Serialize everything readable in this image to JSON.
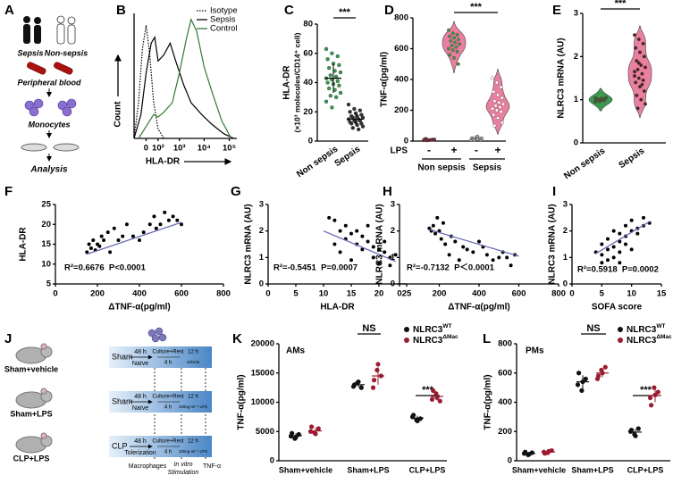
{
  "panel_a": {
    "panel": "A",
    "sepsis": "Sepsis",
    "non_sepsis": "Non-sepsis",
    "blood": "Peripheral blood",
    "monocytes": "Monocytes",
    "analysis": "Analysis"
  },
  "panel_j": {
    "panel": "J",
    "groups": [
      "Sham+vehicle",
      "Sham+LPS",
      "CLP+LPS"
    ],
    "rows": [
      {
        "surgery": "Sham",
        "time": "48 h",
        "state": "Naïve",
        "culture": "Culture+Rest",
        "culture_time": "4 h",
        "stim_time": "12 h",
        "stim": "Vehicle"
      },
      {
        "surgery": "Sham",
        "time": "48 h",
        "state": "Naïve",
        "culture": "Culture+Rest",
        "culture_time": "4 h",
        "stim_time": "12 h",
        "stim": "100ng ml⁻¹ LPS"
      },
      {
        "surgery": "CLP",
        "time": "48 h",
        "state": "Tolerization",
        "culture": "Culture+Rest",
        "culture_time": "4 h",
        "stim_time": "12 h",
        "stim": "100ng ml⁻¹ LPS"
      }
    ],
    "macrophages": "Macrophages",
    "in_vitro": "In vitro",
    "stimulation": "Stimulation",
    "readout": "TNF-α"
  },
  "chart_data": [
    {
      "type": "density",
      "panel": "B",
      "xlabel": "HLA-DR",
      "ylabel": "Count",
      "xscale": "symlog",
      "xlim": [
        -100,
        200000
      ],
      "ylim": [
        0,
        105
      ],
      "xticks": [
        0,
        {
          "value": 100,
          "label": "10²"
        },
        {
          "value": 1000,
          "label": "10³"
        },
        {
          "value": 10000,
          "label": "10⁴"
        },
        {
          "value": 100000,
          "label": "10⁵"
        }
      ],
      "series": [
        {
          "name": "Isotype",
          "color": "#000000",
          "dash": "dotted",
          "x": [
            -100,
            -50,
            -20,
            0,
            20,
            50,
            100,
            200
          ],
          "values": [
            0,
            30,
            75,
            95,
            70,
            30,
            8,
            0
          ]
        },
        {
          "name": "Sepsis",
          "color": "#000000",
          "dash": "solid",
          "x": [
            -100,
            -30,
            0,
            30,
            60,
            100,
            200,
            400,
            700,
            1500,
            3000,
            8000,
            20000,
            60000,
            150000
          ],
          "values": [
            0,
            20,
            55,
            80,
            85,
            65,
            70,
            80,
            65,
            45,
            30,
            20,
            12,
            4,
            0
          ]
        },
        {
          "name": "Control",
          "color": "#2e7d32",
          "dash": "solid",
          "x": [
            -50,
            0,
            50,
            100,
            200,
            500,
            1000,
            2000,
            3000,
            5000,
            10000,
            20000,
            50000,
            120000
          ],
          "values": [
            0,
            10,
            20,
            18,
            22,
            30,
            55,
            85,
            100,
            90,
            60,
            40,
            15,
            0
          ]
        }
      ]
    },
    {
      "type": "strip",
      "panel": "C",
      "ylabel": [
        "HLA-DR",
        "(×10³ molecules/CD14⁺ cell)"
      ],
      "ylim": [
        0,
        80
      ],
      "yticks": [
        0,
        20,
        40,
        60,
        80
      ],
      "categories": [
        "Non sepsis",
        "Sepsis"
      ],
      "significance": "***",
      "groups": [
        {
          "color": "#3a9a4f",
          "values": [
            63,
            60,
            58,
            56,
            53,
            52,
            50,
            48,
            47,
            45,
            44,
            43,
            42,
            41,
            40,
            39,
            38,
            36,
            35,
            33,
            31,
            30,
            27,
            23
          ],
          "mean": 43,
          "error": 10
        },
        {
          "color": "#333333",
          "values": [
            25,
            22,
            21,
            20,
            19,
            18,
            17,
            17,
            16,
            16,
            15,
            15,
            14,
            14,
            13,
            13,
            12,
            12,
            11,
            10,
            9,
            8
          ],
          "mean": 15,
          "error": 4
        }
      ]
    },
    {
      "type": "violin",
      "panel": "D",
      "ylabel": "TNF-α(pg/ml)",
      "ylim": [
        0,
        800
      ],
      "yticks": [
        0,
        200,
        400,
        600,
        800
      ],
      "categories": [
        "-",
        "+",
        "-",
        "+"
      ],
      "row_label": "LPS",
      "super_categories": [
        "Non sepsis",
        "Sepsis"
      ],
      "significance": "***",
      "groups": [
        {
          "color": "#7a2a3a",
          "values": [
            5,
            8,
            10,
            12,
            6,
            9,
            15,
            7,
            11,
            4
          ]
        },
        {
          "color": "#3a9a4f",
          "fill": "#e8809f",
          "values": [
            720,
            700,
            690,
            680,
            670,
            660,
            650,
            640,
            630,
            620,
            610,
            600,
            590,
            580,
            560,
            540,
            500
          ]
        },
        {
          "color": "#9e9e9e",
          "values": [
            5,
            10,
            15,
            20,
            25,
            8,
            12,
            30,
            18,
            6
          ]
        },
        {
          "color": "#ffffff",
          "fill": "#e8809f",
          "values": [
            410,
            380,
            350,
            320,
            300,
            280,
            260,
            250,
            240,
            230,
            220,
            210,
            200,
            190,
            170,
            150,
            120,
            100
          ]
        }
      ]
    },
    {
      "type": "violin",
      "panel": "E",
      "ylabel": "NLRC3 mRNA (AU)",
      "ylim": [
        0,
        3
      ],
      "yticks": [
        0,
        1,
        2,
        3
      ],
      "categories": [
        "Non sepsis",
        "Sepsis"
      ],
      "significance": "***",
      "groups": [
        {
          "color": "#2e6b3a",
          "fill": "#3c9a50",
          "values": [
            0.95,
            0.97,
            0.98,
            1.0,
            1.0,
            1.01,
            1.02,
            1.03,
            1.05,
            0.99,
            1.0,
            1.04,
            0.96,
            1.0
          ]
        },
        {
          "color": "#3a2a2a",
          "fill": "#e8809f",
          "values": [
            2.5,
            2.4,
            2.3,
            2.2,
            2.1,
            2.0,
            1.9,
            1.8,
            1.75,
            1.7,
            1.6,
            1.55,
            1.5,
            1.45,
            1.4,
            1.3,
            1.2,
            1.1,
            1.0,
            0.9,
            0.8,
            1.35,
            1.65,
            1.85
          ]
        }
      ]
    },
    {
      "type": "scatter",
      "panel": "F",
      "xlabel": "ΔTNF-α(pg/ml)",
      "ylabel": "HLA-DR",
      "xlim": [
        0,
        800
      ],
      "xticks": [
        0,
        200,
        400,
        600,
        800
      ],
      "ylim": [
        5,
        25
      ],
      "yticks": [
        5,
        10,
        15,
        20,
        25
      ],
      "annotation": "R²=0.6676  P<0.0001",
      "color": "#000000",
      "fit_color": "#6a6ab8",
      "x": [
        150,
        160,
        170,
        180,
        190,
        200,
        210,
        220,
        230,
        250,
        260,
        280,
        300,
        320,
        340,
        370,
        400,
        420,
        450,
        470,
        480,
        500,
        520,
        540,
        560,
        580,
        600
      ],
      "values": [
        13,
        15,
        14,
        16,
        13.5,
        15,
        14.5,
        17,
        16,
        18,
        13,
        19,
        16,
        17,
        20,
        17,
        16,
        18,
        20,
        22,
        19,
        20,
        23,
        21,
        22,
        21,
        20
      ],
      "fit": {
        "x": [
          150,
          600
        ],
        "y": [
          12.5,
          20.5
        ]
      }
    },
    {
      "type": "scatter",
      "panel": "G",
      "xlabel": "HLA-DR",
      "ylabel": "NLRC3 mRNA (AU)",
      "xlim": [
        0,
        25
      ],
      "xticks": [
        0,
        5,
        10,
        15,
        20,
        25
      ],
      "ylim": [
        0,
        3
      ],
      "yticks": [
        0,
        1,
        2,
        3
      ],
      "annotation": "R²=-0.5451  P=0.0007",
      "color": "#000000",
      "fit_color": "#6a6ab8",
      "x": [
        11,
        12,
        13,
        13,
        14,
        15,
        15,
        16,
        16,
        17,
        17,
        18,
        18,
        19,
        19,
        20,
        20,
        21,
        21,
        22,
        22,
        23,
        14,
        12
      ],
      "values": [
        2.5,
        2.4,
        1.2,
        2.0,
        2.2,
        1.9,
        0.9,
        2.0,
        1.5,
        1.8,
        1.3,
        1.6,
        2.2,
        1.4,
        1.0,
        1.3,
        0.8,
        1.2,
        1.6,
        1.0,
        0.7,
        1.1,
        1.7,
        1.5
      ],
      "fit": {
        "x": [
          10,
          23
        ],
        "y": [
          2.0,
          0.85
        ]
      }
    },
    {
      "type": "scatter",
      "panel": "H",
      "xlabel": "ΔTNF-α(pg/ml)",
      "ylabel": "NLRC3 mRNA (AU)",
      "xlim": [
        0,
        800
      ],
      "xticks": [
        0,
        200,
        400,
        600,
        800
      ],
      "ylim": [
        0,
        3
      ],
      "yticks": [
        0,
        1,
        2,
        3
      ],
      "annotation": "R²=-0.7132  P＜0.0001",
      "color": "#000000",
      "fit_color": "#6a6ab8",
      "x": [
        150,
        160,
        170,
        180,
        200,
        210,
        230,
        250,
        260,
        280,
        300,
        320,
        340,
        370,
        400,
        420,
        440,
        470,
        500,
        520,
        540,
        560,
        580,
        190,
        220
      ],
      "values": [
        2.1,
        2.0,
        2.2,
        1.9,
        2.0,
        1.7,
        1.5,
        1.1,
        1.8,
        1.6,
        0.9,
        1.4,
        1.3,
        1.2,
        1.6,
        1.4,
        1.1,
        0.9,
        1.0,
        1.2,
        1.0,
        0.7,
        1.1,
        2.5,
        2.3
      ],
      "fit": {
        "x": [
          150,
          600
        ],
        "y": [
          2.05,
          1.05
        ]
      }
    },
    {
      "type": "scatter",
      "panel": "I",
      "xlabel": "SOFA score",
      "ylabel": "NLRC3 mRNA (AU)",
      "xlim": [
        0,
        15
      ],
      "xticks": [
        0,
        5,
        10,
        15
      ],
      "ylim": [
        0,
        3
      ],
      "yticks": [
        0,
        1,
        2,
        3
      ],
      "annotation": "R²=0.5918  P=0.0002",
      "color": "#000000",
      "fit_color": "#6a6ab8",
      "x": [
        4,
        5,
        5,
        6,
        6,
        6,
        7,
        7,
        7,
        8,
        8,
        8,
        9,
        9,
        9,
        10,
        10,
        10,
        11,
        11,
        12,
        12,
        13,
        8,
        5
      ],
      "values": [
        1.2,
        1.1,
        1.5,
        1.3,
        0.9,
        1.7,
        1.4,
        1.0,
        2.0,
        1.6,
        1.2,
        0.8,
        1.8,
        1.5,
        2.2,
        2.0,
        1.3,
        2.4,
        1.9,
        2.1,
        2.5,
        2.2,
        2.3,
        1.9,
        0.8
      ],
      "fit": {
        "x": [
          4,
          13
        ],
        "y": [
          1.15,
          2.35
        ]
      }
    },
    {
      "type": "strip",
      "panel": "K",
      "subtitle": "AMs",
      "ylabel": "TNF-α(pg/ml)",
      "ylim": [
        0,
        20000
      ],
      "yticks": [
        0,
        5000,
        10000,
        15000,
        20000
      ],
      "categories": [
        "Sham+vehicle",
        "Sham+LPS",
        "CLP+LPS"
      ],
      "significance": [
        "NS",
        "***"
      ],
      "series": [
        {
          "name": "NLRC3",
          "name_superscript": "WT",
          "color": "#111111",
          "values": [
            [
              4200,
              3800,
              4500,
              4700,
              4000
            ],
            [
              12700,
              13300,
              12500,
              13000,
              13500
            ],
            [
              7500,
              7000,
              7200,
              7800,
              6800
            ]
          ],
          "means": [
            4300,
            13000,
            7300
          ],
          "errors": [
            400,
            400,
            400
          ]
        },
        {
          "name": "NLRC3",
          "name_superscript": "ΔMac",
          "color": "#9b1b30",
          "values": [
            [
              5000,
              4800,
              5500,
              5800,
              4600
            ],
            [
              12500,
              15500,
              14500,
              13800,
              16500
            ],
            [
              10500,
              11500,
              10200,
              12000,
              10800
            ]
          ],
          "means": [
            5100,
            14500,
            11000
          ],
          "errors": [
            500,
            1500,
            700
          ]
        }
      ]
    },
    {
      "type": "strip",
      "panel": "L",
      "subtitle": "PMs",
      "ylabel": "TNF-α(pg/ml)",
      "ylim": [
        0,
        800
      ],
      "yticks": [
        0,
        200,
        400,
        600,
        800
      ],
      "categories": [
        "Sham+vehicle",
        "Sham+LPS",
        "CLP+LPS"
      ],
      "significance": [
        "NS",
        "***"
      ],
      "series": [
        {
          "name": "NLRC3",
          "name_superscript": "WT",
          "color": "#111111",
          "values": [
            [
              50,
              40,
              55,
              60,
              45
            ],
            [
              520,
              480,
              560,
              600,
              540
            ],
            [
              200,
              180,
              220,
              210,
              170
            ]
          ],
          "means": [
            50,
            540,
            196
          ],
          "errors": [
            8,
            45,
            20
          ]
        },
        {
          "name": "NLRC3",
          "name_superscript": "ΔMac",
          "color": "#9b1b30",
          "values": [
            [
              60,
              55,
              70,
              50,
              65
            ],
            [
              560,
              620,
              640,
              580,
              600
            ],
            [
              430,
              500,
              470,
              380,
              450
            ]
          ],
          "means": [
            60,
            600,
            446
          ],
          "errors": [
            8,
            30,
            45
          ]
        }
      ]
    }
  ]
}
